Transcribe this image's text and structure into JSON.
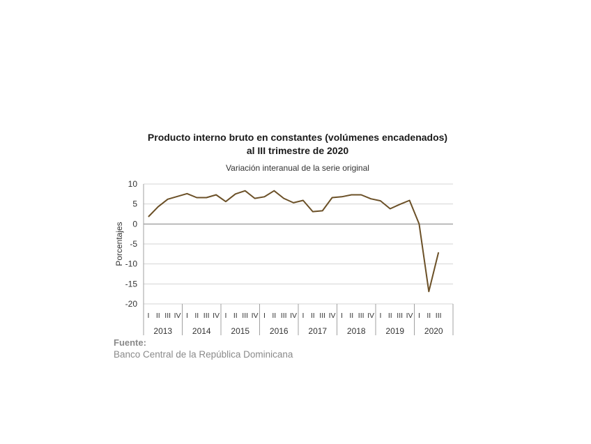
{
  "title_line1": "Producto interno bruto en constantes (volúmenes encadenados)",
  "title_line2": "al III trimestre de 2020",
  "subtitle": "Variación interanual de la serie original",
  "source": {
    "label": "Fuente:",
    "text": "Banco Central de la República Dominicana"
  },
  "chart_data": {
    "type": "line",
    "title": "Producto interno bruto en constantes (volúmenes encadenados) al III trimestre de 2020",
    "subtitle": "Variación interanual de la serie original",
    "ylabel": "Porcentajes",
    "xlabel": "",
    "ylim": [
      -20,
      10
    ],
    "yticks": [
      10,
      5,
      0,
      -5,
      -10,
      -15,
      -20
    ],
    "grid": true,
    "color": "#6b5027",
    "years": [
      "2013",
      "2014",
      "2015",
      "2016",
      "2017",
      "2018",
      "2019",
      "2020"
    ],
    "quarter_labels": [
      "I",
      "II",
      "III",
      "IV"
    ],
    "x": [
      "2013-I",
      "2013-II",
      "2013-III",
      "2013-IV",
      "2014-I",
      "2014-II",
      "2014-III",
      "2014-IV",
      "2015-I",
      "2015-II",
      "2015-III",
      "2015-IV",
      "2016-I",
      "2016-II",
      "2016-III",
      "2016-IV",
      "2017-I",
      "2017-II",
      "2017-III",
      "2017-IV",
      "2018-I",
      "2018-II",
      "2018-III",
      "2018-IV",
      "2019-I",
      "2019-II",
      "2019-III",
      "2019-IV",
      "2020-I",
      "2020-II",
      "2020-III"
    ],
    "series": [
      {
        "values": [
          1.8,
          4.3,
          6.2,
          6.9,
          7.6,
          6.6,
          6.6,
          7.3,
          5.6,
          7.5,
          8.3,
          6.4,
          6.8,
          8.3,
          6.4,
          5.3,
          5.9,
          3.1,
          3.3,
          6.6,
          6.8,
          7.3,
          7.3,
          6.3,
          5.8,
          3.8,
          4.9,
          5.9,
          0.0,
          -16.9,
          -7.1
        ]
      }
    ]
  }
}
